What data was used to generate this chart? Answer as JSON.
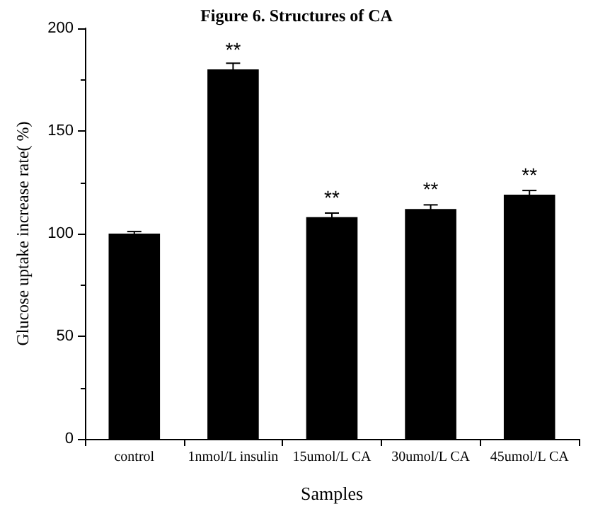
{
  "chart_data": {
    "type": "bar",
    "title": "Figure 6. Structures of CA",
    "xlabel": "Samples",
    "ylabel": "Glucose uptake increase rate( %)",
    "categories": [
      "control",
      "1nmol/L insulin",
      "15umol/L CA",
      "30umol/L CA",
      "45umol/L CA"
    ],
    "values": [
      100,
      180,
      108,
      112,
      119
    ],
    "errors": [
      1,
      3,
      2,
      2,
      2
    ],
    "value_labels": [
      null,
      "**",
      "**",
      "**",
      "**"
    ],
    "color": "#000000",
    "ylim": [
      0,
      200
    ],
    "yticks": [
      0,
      50,
      100,
      150,
      200
    ],
    "grid": false
  }
}
